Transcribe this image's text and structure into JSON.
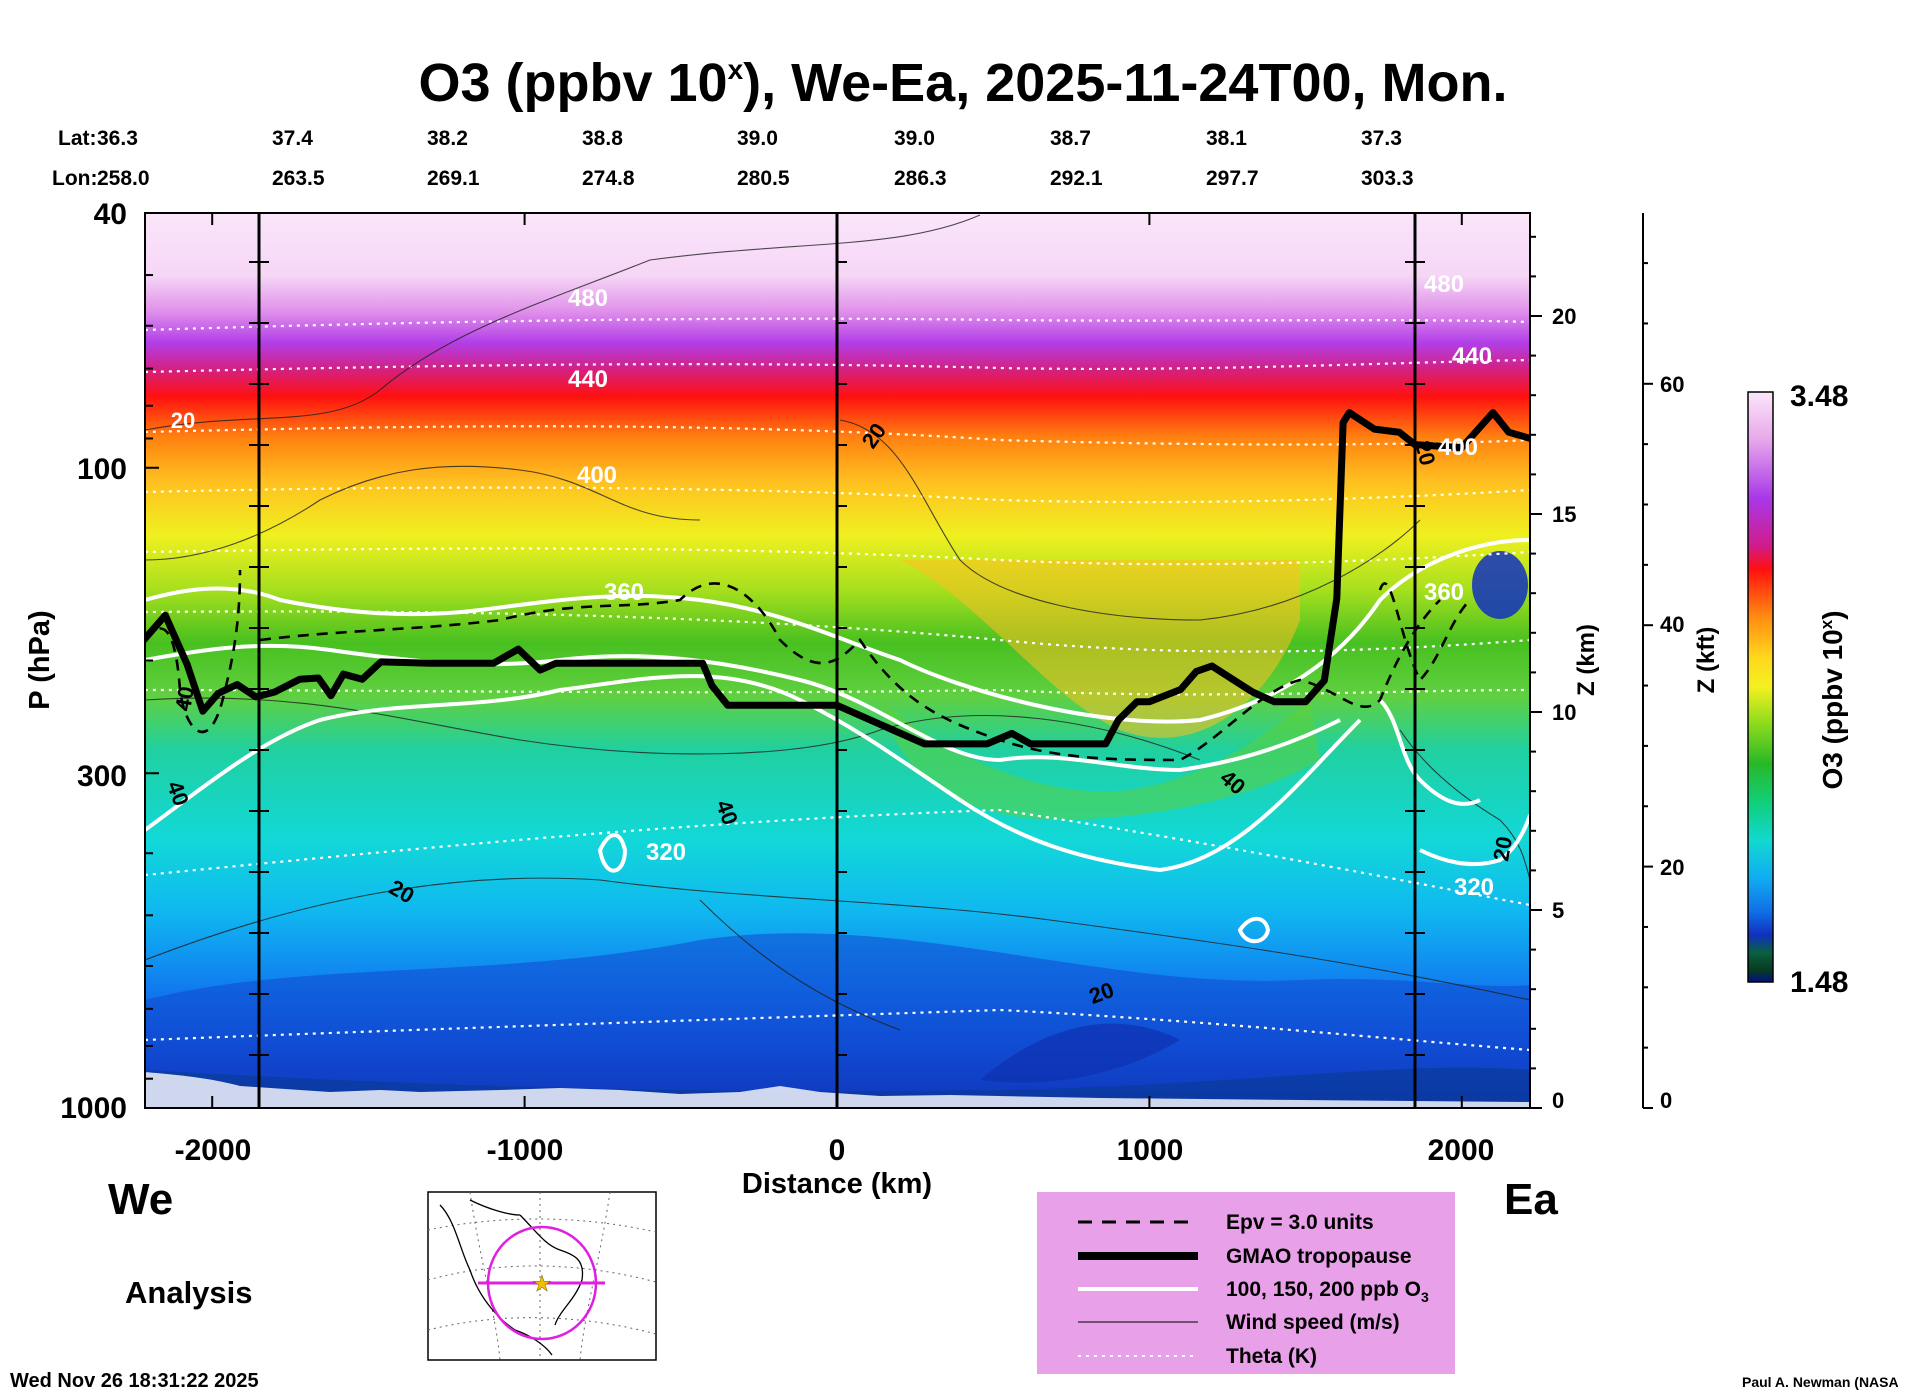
{
  "title": {
    "main": "O3 (ppbv 10",
    "sup": "x",
    "rest": "), We-Ea, 2025-11-24T00, Mon."
  },
  "lat_label": "Lat:",
  "lon_label": "Lon:",
  "lats": [
    "36.3",
    "37.4",
    "38.2",
    "38.8",
    "39.0",
    "39.0",
    "38.7",
    "38.1",
    "37.3"
  ],
  "lons": [
    "258.0",
    "263.5",
    "269.1",
    "274.8",
    "280.5",
    "286.3",
    "292.1",
    "297.7",
    "303.3"
  ],
  "chart_data": {
    "type": "heatmap",
    "title": "O3 (ppbv 10^x), We-Ea, 2025-11-24T00, Mon.",
    "xlabel": "Distance (km)",
    "ylabel": "P (hPa)",
    "xlim": [
      -2220,
      2220
    ],
    "ylim_hpa": [
      1000,
      40
    ],
    "x_ticks": [
      "-2000",
      "-1000",
      "0",
      "1000",
      "2000"
    ],
    "y_ticks": [
      "40",
      "100",
      "300",
      "1000"
    ],
    "z_km_label": "Z (km)",
    "z_km_ticks": [
      "20",
      "15",
      "10",
      "5",
      "0"
    ],
    "z_kft_label": "Z (kft)",
    "z_kft_ticks": [
      "60",
      "40",
      "20",
      "0"
    ],
    "colorbar_label": "O3 (ppbv 10",
    "colorbar_label_sup": "x",
    "colorbar_label_end": ")",
    "colorbar_range": [
      "3.48",
      "1.48"
    ],
    "colorbar_colors": [
      "#fbe6fb",
      "#f3c6f3",
      "#e79be9",
      "#d66ae0",
      "#b23ee8",
      "#8a2bd8",
      "#d11d9a",
      "#e8184a",
      "#ff1010",
      "#ff4a10",
      "#ff8a10",
      "#ffb018",
      "#ffd81e",
      "#f4f020",
      "#c0e81e",
      "#80d81a",
      "#40c020",
      "#1faa30",
      "#10d080",
      "#12d8c8",
      "#10c0f0",
      "#1090f0",
      "#1060e0",
      "#1030c0",
      "#1020a0",
      "#0a5030",
      "#063a20",
      "#041080"
    ],
    "contour_labels": {
      "theta": [
        "480",
        "440",
        "400",
        "360",
        "320"
      ],
      "ozone": [
        "360",
        "320"
      ],
      "wind": [
        "20",
        "40"
      ]
    },
    "tropopause_hpa": {
      "x": [
        -2220,
        -2150,
        -2080,
        -2030,
        -1980,
        -1920,
        -1860,
        -1800,
        -1720,
        -1660,
        -1620,
        -1580,
        -1520,
        -1460,
        -1300,
        -1100,
        -1020,
        -950,
        -900,
        -600,
        -430,
        -400,
        -350,
        0,
        280,
        380,
        480,
        560,
        620,
        680,
        860,
        900,
        960,
        1000,
        1100,
        1150,
        1200,
        1260,
        1330,
        1400,
        1500,
        1560,
        1600,
        1620,
        1640,
        1720,
        1800,
        1850,
        2000,
        2100,
        2150,
        2220
      ],
      "p": [
        186,
        170,
        203,
        240,
        225,
        218,
        228,
        224,
        214,
        213,
        227,
        210,
        214,
        201,
        202,
        202,
        192,
        207,
        202,
        202,
        202,
        219,
        235,
        235,
        270,
        270,
        270,
        260,
        270,
        270,
        270,
        248,
        232,
        232,
        222,
        208,
        204,
        213,
        224,
        232,
        232,
        215,
        160,
        85,
        82,
        87,
        88,
        92,
        93,
        82,
        88,
        90
      ]
    }
  },
  "legend": {
    "epv": "Epv = 3.0 units",
    "tropopause": "GMAO tropopause",
    "ozone": "100, 150, 200 ppb O",
    "ozone_sub": "3",
    "wind": "Wind speed (m/s)",
    "theta": "Theta (K)"
  },
  "we_label": "We",
  "ea_label": "Ea",
  "analysis_label": "Analysis",
  "timestamp": "Wed Nov 26 18:31:22 2025",
  "credit": "Paul A. Newman (NASA",
  "colors": {
    "legend_bg": "#e8a0e8",
    "map_ring": "#e020e0",
    "map_star": "#f0c000"
  }
}
